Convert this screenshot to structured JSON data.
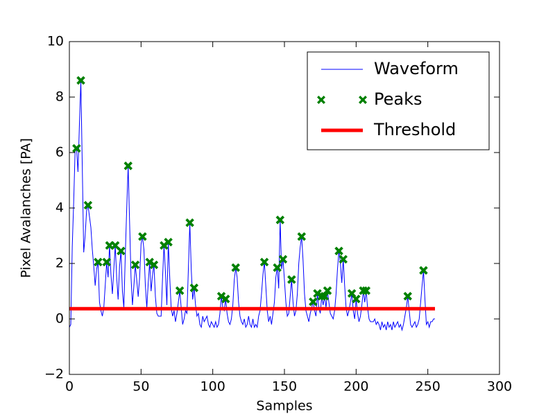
{
  "chart_data": {
    "type": "line",
    "xlabel": "Samples",
    "ylabel": "Pixel Avalanches [PA]",
    "xlim": [
      0,
      300
    ],
    "xticks": [
      0,
      50,
      100,
      150,
      200,
      250,
      300
    ],
    "ylim": [
      -2,
      10
    ],
    "yticks": [
      {
        "value": -2,
        "label": "−2"
      },
      0,
      2,
      4,
      6,
      8,
      10
    ],
    "legend": "upper right",
    "series": [
      {
        "name": "Waveform",
        "type": "line",
        "color": "#0000ff",
        "linewidth": 1,
        "x": [
          0,
          1,
          2,
          3,
          4,
          5,
          6,
          7,
          8,
          9,
          10,
          11,
          12,
          13,
          14,
          15,
          16,
          17,
          18,
          19,
          20,
          21,
          22,
          23,
          24,
          25,
          26,
          27,
          28,
          29,
          30,
          31,
          32,
          33,
          34,
          35,
          36,
          37,
          38,
          39,
          40,
          41,
          42,
          43,
          44,
          45,
          46,
          47,
          48,
          49,
          50,
          51,
          52,
          53,
          54,
          55,
          56,
          57,
          58,
          59,
          60,
          61,
          62,
          63,
          64,
          65,
          66,
          67,
          68,
          69,
          70,
          71,
          72,
          73,
          74,
          75,
          76,
          77,
          78,
          79,
          80,
          81,
          82,
          83,
          84,
          85,
          86,
          87,
          88,
          89,
          90,
          91,
          92,
          93,
          94,
          95,
          96,
          97,
          98,
          99,
          100,
          101,
          102,
          103,
          104,
          105,
          106,
          107,
          108,
          109,
          110,
          111,
          112,
          113,
          114,
          115,
          116,
          117,
          118,
          119,
          120,
          121,
          122,
          123,
          124,
          125,
          126,
          127,
          128,
          129,
          130,
          131,
          132,
          133,
          134,
          135,
          136,
          137,
          138,
          139,
          140,
          141,
          142,
          143,
          144,
          145,
          146,
          147,
          148,
          149,
          150,
          151,
          152,
          153,
          154,
          155,
          156,
          157,
          158,
          159,
          160,
          161,
          162,
          163,
          164,
          165,
          166,
          167,
          168,
          169,
          170,
          171,
          172,
          173,
          174,
          175,
          176,
          177,
          178,
          179,
          180,
          181,
          182,
          183,
          184,
          185,
          186,
          187,
          188,
          189,
          190,
          191,
          192,
          193,
          194,
          195,
          196,
          197,
          198,
          199,
          200,
          201,
          202,
          203,
          204,
          205,
          206,
          207,
          208,
          209,
          210,
          211,
          212,
          213,
          214,
          215,
          216,
          217,
          218,
          219,
          220,
          221,
          222,
          223,
          224,
          225,
          226,
          227,
          228,
          229,
          230,
          231,
          232,
          233,
          234,
          235,
          236,
          237,
          238,
          239,
          240,
          241,
          242,
          243,
          244,
          245,
          246,
          247,
          248,
          249,
          250,
          251,
          252,
          253,
          254,
          255
        ],
        "values": [
          -0.3,
          -0.2,
          2.6,
          4.2,
          6.1,
          6.15,
          5.3,
          7.0,
          8.6,
          5.5,
          2.4,
          3.0,
          3.9,
          4.1,
          3.7,
          3.3,
          2.5,
          1.9,
          1.2,
          1.8,
          2.05,
          0.6,
          0.3,
          0.1,
          0.4,
          1.2,
          2.05,
          1.5,
          2.65,
          1.6,
          0.9,
          1.8,
          2.65,
          1.5,
          0.7,
          1.9,
          2.45,
          1.0,
          0.4,
          2.3,
          4.0,
          5.52,
          3.5,
          1.5,
          0.5,
          1.2,
          1.95,
          1.4,
          0.8,
          1.5,
          2.7,
          2.97,
          2.5,
          1.2,
          0.4,
          1.3,
          2.05,
          1.0,
          1.6,
          1.95,
          0.8,
          0.2,
          0.1,
          0.1,
          0.1,
          1.5,
          2.65,
          1.7,
          0.5,
          2.77,
          1.5,
          0.4,
          0.1,
          0.3,
          -0.1,
          0.2,
          0.6,
          1.02,
          0.4,
          -0.2,
          0.0,
          0.3,
          0.2,
          1.8,
          3.47,
          1.8,
          0.7,
          1.12,
          0.5,
          0.1,
          0.2,
          -0.2,
          -0.3,
          0.1,
          -0.1,
          0.0,
          0.1,
          -0.2,
          -0.3,
          -0.1,
          -0.2,
          -0.3,
          -0.1,
          -0.3,
          -0.2,
          0.2,
          0.82,
          0.4,
          0.3,
          0.72,
          0.2,
          -0.1,
          -0.2,
          0.0,
          0.5,
          1.4,
          1.85,
          1.5,
          0.6,
          0.1,
          -0.1,
          -0.2,
          0.0,
          -0.3,
          -0.2,
          0.1,
          -0.2,
          -0.3,
          0.0,
          -0.3,
          -0.2,
          -0.3,
          0.1,
          0.3,
          0.9,
          1.6,
          2.05,
          1.2,
          0.3,
          -0.1,
          0.1,
          -0.2,
          0.2,
          0.6,
          1.5,
          1.85,
          1.1,
          3.57,
          1.8,
          2.15,
          1.4,
          0.6,
          0.1,
          0.2,
          0.8,
          1.42,
          0.6,
          0.1,
          0.3,
          0.9,
          2.0,
          2.6,
          2.97,
          2.1,
          0.9,
          0.3,
          0.1,
          -0.1,
          0.2,
          0.4,
          0.62,
          0.3,
          0.1,
          0.92,
          0.4,
          0.2,
          0.82,
          0.5,
          0.82,
          0.4,
          1.02,
          0.6,
          0.2,
          0.1,
          0.0,
          0.3,
          0.9,
          1.8,
          2.45,
          2.0,
          1.3,
          2.15,
          1.2,
          0.4,
          0.1,
          0.3,
          0.6,
          0.92,
          0.3,
          0.0,
          0.72,
          0.2,
          -0.1,
          0.1,
          0.5,
          1.02,
          0.6,
          1.02,
          0.4,
          0.0,
          -0.1,
          -0.1,
          -0.1,
          0.0,
          -0.2,
          -0.1,
          -0.2,
          -0.4,
          -0.1,
          -0.3,
          -0.2,
          -0.4,
          -0.1,
          -0.3,
          -0.2,
          -0.4,
          -0.1,
          -0.3,
          -0.2,
          -0.1,
          -0.3,
          -0.2,
          -0.4,
          -0.2,
          0.1,
          0.4,
          0.82,
          0.3,
          -0.2,
          -0.3,
          -0.2,
          -0.1,
          -0.3,
          -0.2,
          0.0,
          0.6,
          1.2,
          1.75,
          0.7,
          -0.2,
          -0.1,
          -0.3,
          -0.1,
          -0.1,
          0.0,
          0.0
        ]
      },
      {
        "name": "Peaks",
        "type": "scatter",
        "color": "#008000",
        "x": [
          5,
          8,
          13,
          20,
          26,
          28,
          32,
          36,
          41,
          46,
          51,
          56,
          59,
          66,
          69,
          77,
          84,
          87,
          106,
          109,
          116,
          136,
          145,
          147,
          149,
          155,
          162,
          170,
          173,
          176,
          178,
          180,
          188,
          191,
          197,
          200,
          205,
          207,
          236,
          247
        ],
        "values": [
          6.15,
          8.6,
          4.1,
          2.05,
          2.05,
          2.65,
          2.65,
          2.45,
          5.52,
          1.95,
          2.97,
          2.05,
          1.95,
          2.65,
          2.77,
          1.02,
          3.47,
          1.12,
          0.82,
          0.72,
          1.85,
          2.05,
          1.85,
          3.57,
          2.15,
          1.42,
          2.97,
          0.62,
          0.92,
          0.82,
          0.82,
          1.02,
          2.45,
          2.15,
          0.92,
          0.72,
          1.02,
          1.02,
          0.82,
          1.75
        ]
      },
      {
        "name": "Threshold",
        "type": "line",
        "color": "#ff0000",
        "linewidth": 5,
        "x": [
          0,
          255
        ],
        "values": [
          0.37,
          0.37
        ]
      }
    ]
  }
}
